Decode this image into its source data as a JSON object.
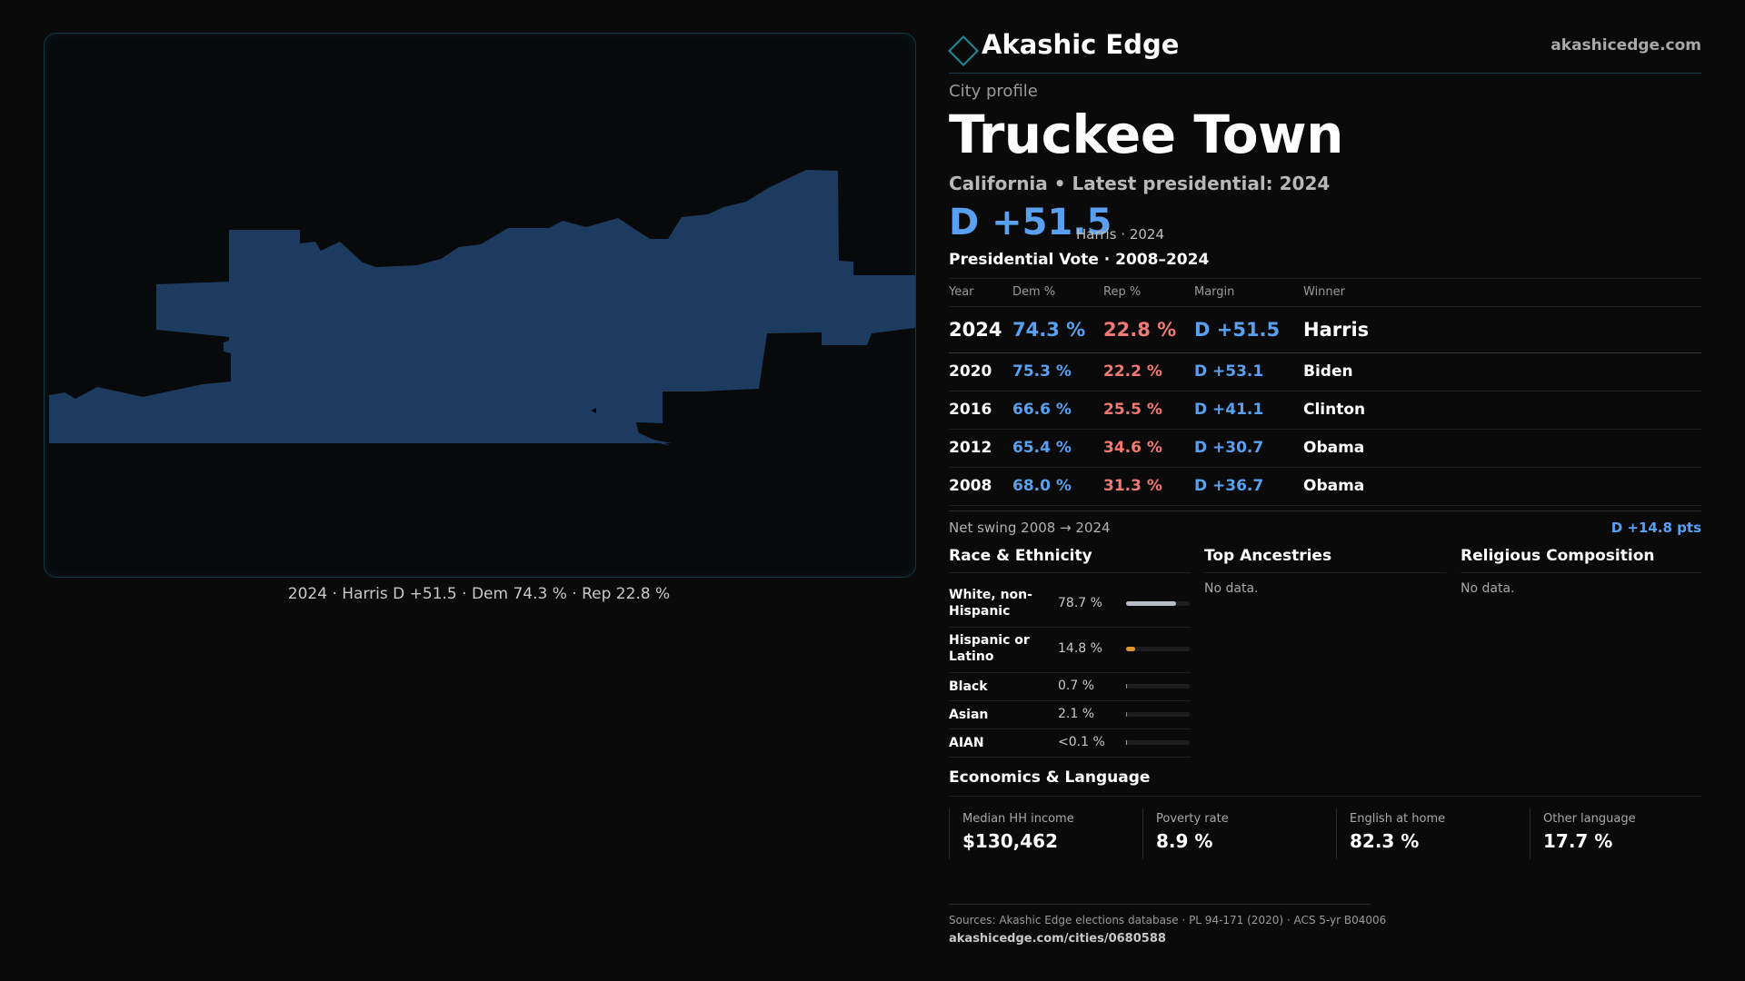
{
  "map": {
    "fill_color": "#1d3a5f",
    "caption": "2024 · Harris D +51.5 · Dem 74.3 % · Rep 22.8 %"
  },
  "header": {
    "brand": "Akashic Edge",
    "site": "akashicedge.com"
  },
  "profile": {
    "eyebrow": "City profile",
    "title": "Truckee Town",
    "subtitle": "California • Latest presidential: 2024",
    "margin": "D +51.5",
    "margin_note": "Harris · 2024"
  },
  "vote": {
    "title": "Presidential Vote · 2008–2024",
    "headers": {
      "year": "Year",
      "dem": "Dem %",
      "rep": "Rep %",
      "margin": "Margin",
      "winner": "Winner"
    },
    "rows": [
      {
        "year": "2024",
        "dem": "74.3 %",
        "rep": "22.8 %",
        "margin": "D +51.5",
        "winner": "Harris"
      },
      {
        "year": "2020",
        "dem": "75.3 %",
        "rep": "22.2 %",
        "margin": "D +53.1",
        "winner": "Biden"
      },
      {
        "year": "2016",
        "dem": "66.6 %",
        "rep": "25.5 %",
        "margin": "D +41.1",
        "winner": "Clinton"
      },
      {
        "year": "2012",
        "dem": "65.4 %",
        "rep": "34.6 %",
        "margin": "D +30.7",
        "winner": "Obama"
      },
      {
        "year": "2008",
        "dem": "68.0 %",
        "rep": "31.3 %",
        "margin": "D +36.7",
        "winner": "Obama"
      }
    ],
    "swing_label": "Net swing 2008 → 2024",
    "swing_value": "D +14.8 pts"
  },
  "race": {
    "title": "Race & Ethnicity",
    "rows": [
      {
        "label": "White, non-Hispanic",
        "pct": "78.7 %",
        "value": 78.7,
        "color": "#b8bcc4"
      },
      {
        "label": "Hispanic or Latino",
        "pct": "14.8 %",
        "value": 14.8,
        "color": "#e0962a"
      },
      {
        "label": "Black",
        "pct": "0.7 %",
        "value": 0.7,
        "color": "#9a7fd0"
      },
      {
        "label": "Asian",
        "pct": "2.1 %",
        "value": 2.1,
        "color": "#2fb59a"
      },
      {
        "label": "AIAN",
        "pct": "<0.1 %",
        "value": 0.05,
        "color": "#c0a060"
      }
    ]
  },
  "ancestries": {
    "title": "Top Ancestries",
    "empty": "No data."
  },
  "religion": {
    "title": "Religious Composition",
    "empty": "No data."
  },
  "economics": {
    "title": "Economics & Language",
    "cells": [
      {
        "label": "Median HH income",
        "value": "$130,462"
      },
      {
        "label": "Poverty rate",
        "value": "8.9 %"
      },
      {
        "label": "English at home",
        "value": "82.3 %"
      },
      {
        "label": "Other language",
        "value": "17.7 %"
      }
    ]
  },
  "sources": {
    "line1": "Sources: Akashic Edge elections database · PL 94-171 (2020) · ACS 5-yr B04006",
    "line2": "akashicedge.com/cities/0680588"
  }
}
